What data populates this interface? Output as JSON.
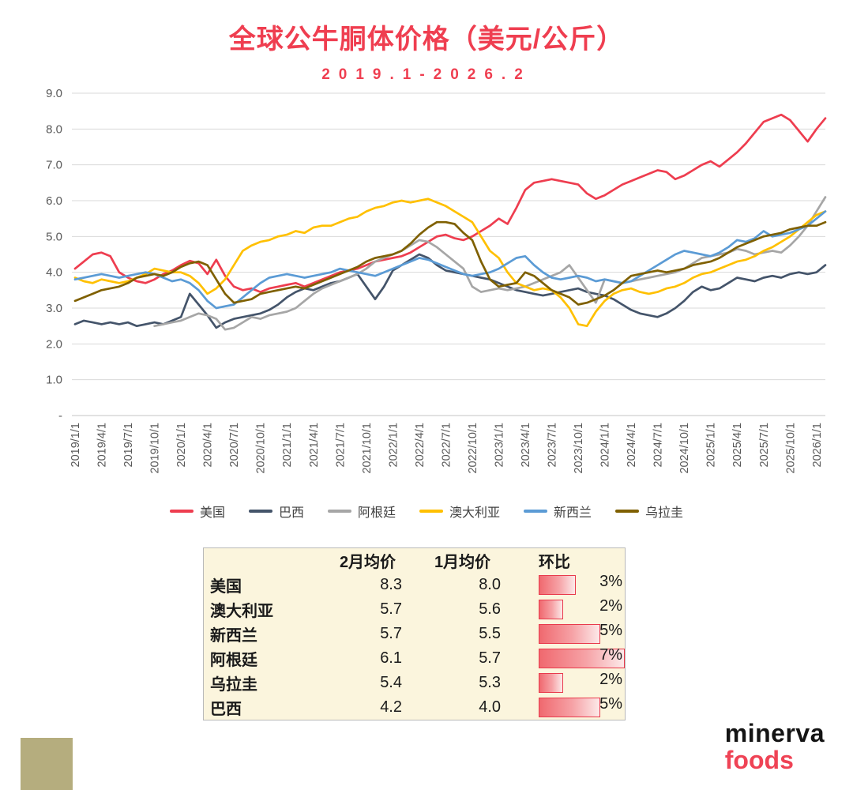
{
  "chart_data": {
    "type": "line",
    "title": "全球公牛胴体价格（美元/公斤）",
    "subtitle": "2019.1-2026.2",
    "ylim": [
      0,
      9
    ],
    "grid": "horizontal",
    "legend_position": "bottom",
    "y_ticks": [
      "9.0",
      "8.0",
      "7.0",
      "6.0",
      "5.0",
      "4.0",
      "3.0",
      "2.0",
      "1.0",
      "-"
    ],
    "x_tick_labels": [
      "2019/1/1",
      "2019/4/1",
      "2019/7/1",
      "2019/10/1",
      "2020/1/1",
      "2020/4/1",
      "2020/7/1",
      "2020/10/1",
      "2021/1/1",
      "2021/4/1",
      "2021/7/1",
      "2021/10/1",
      "2022/1/1",
      "2022/4/1",
      "2022/7/1",
      "2022/10/1",
      "2023/1/1",
      "2023/4/1",
      "2023/7/1",
      "2023/10/1",
      "2024/1/1",
      "2024/4/1",
      "2024/7/1",
      "2024/10/1",
      "2025/1/1",
      "2025/4/1",
      "2025/7/1",
      "2025/10/1",
      "2026/1/1"
    ],
    "x_frequency": "monthly",
    "series": [
      {
        "name": "美国",
        "color": "#ee3d4f",
        "values": [
          4.1,
          4.3,
          4.5,
          4.55,
          4.45,
          4.0,
          3.85,
          3.75,
          3.7,
          3.8,
          3.95,
          4.05,
          4.2,
          4.32,
          4.25,
          3.95,
          4.35,
          3.9,
          3.6,
          3.5,
          3.55,
          3.45,
          3.55,
          3.6,
          3.65,
          3.7,
          3.6,
          3.7,
          3.8,
          3.9,
          4.0,
          4.05,
          4.1,
          4.2,
          4.3,
          4.35,
          4.4,
          4.45,
          4.55,
          4.7,
          4.85,
          5.0,
          5.05,
          4.95,
          4.9,
          5.0,
          5.15,
          5.3,
          5.5,
          5.35,
          5.8,
          6.3,
          6.5,
          6.55,
          6.6,
          6.55,
          6.5,
          6.45,
          6.2,
          6.05,
          6.15,
          6.3,
          6.45,
          6.55,
          6.65,
          6.75,
          6.85,
          6.8,
          6.6,
          6.7,
          6.85,
          7.0,
          7.1,
          6.95,
          7.15,
          7.35,
          7.6,
          7.9,
          8.2,
          8.3,
          8.4,
          8.25,
          7.95,
          7.65,
          8.0,
          8.3
        ]
      },
      {
        "name": "巴西",
        "color": "#44546a",
        "values": [
          2.55,
          2.65,
          2.6,
          2.55,
          2.6,
          2.55,
          2.6,
          2.5,
          2.55,
          2.6,
          2.55,
          2.65,
          2.75,
          3.4,
          3.1,
          2.8,
          2.45,
          2.6,
          2.7,
          2.75,
          2.8,
          2.85,
          2.95,
          3.1,
          3.3,
          3.45,
          3.55,
          3.5,
          3.6,
          3.7,
          3.75,
          3.85,
          3.95,
          3.6,
          3.25,
          3.6,
          4.05,
          4.2,
          4.35,
          4.5,
          4.4,
          4.2,
          4.05,
          4.0,
          3.95,
          3.9,
          3.85,
          3.8,
          3.7,
          3.6,
          3.5,
          3.45,
          3.4,
          3.35,
          3.4,
          3.45,
          3.5,
          3.55,
          3.45,
          3.4,
          3.35,
          3.25,
          3.1,
          2.95,
          2.85,
          2.8,
          2.75,
          2.85,
          3.0,
          3.2,
          3.45,
          3.6,
          3.5,
          3.55,
          3.7,
          3.85,
          3.8,
          3.75,
          3.85,
          3.9,
          3.85,
          3.95,
          4.0,
          3.95,
          4.0,
          4.2
        ]
      },
      {
        "name": "阿根廷",
        "color": "#a6a6a6",
        "values": [
          null,
          null,
          null,
          null,
          null,
          null,
          null,
          null,
          null,
          2.5,
          2.55,
          2.6,
          2.65,
          2.75,
          2.85,
          2.8,
          2.7,
          2.4,
          2.45,
          2.6,
          2.75,
          2.7,
          2.8,
          2.85,
          2.9,
          3.0,
          3.2,
          3.4,
          3.55,
          3.65,
          3.75,
          3.85,
          3.95,
          4.1,
          4.3,
          4.4,
          4.5,
          4.6,
          4.75,
          4.9,
          4.85,
          4.7,
          4.5,
          4.3,
          4.1,
          3.6,
          3.45,
          3.5,
          3.55,
          3.5,
          3.55,
          3.6,
          3.7,
          3.8,
          3.9,
          4.0,
          4.2,
          3.85,
          3.5,
          3.15,
          3.8,
          3.75,
          3.7,
          3.75,
          3.8,
          3.85,
          3.9,
          3.95,
          4.0,
          4.1,
          4.25,
          4.4,
          4.45,
          4.5,
          4.55,
          4.65,
          4.6,
          4.5,
          4.55,
          4.6,
          4.55,
          4.75,
          5.0,
          5.3,
          5.7,
          6.1
        ]
      },
      {
        "name": "澳大利亚",
        "color": "#ffc000",
        "values": [
          3.85,
          3.75,
          3.7,
          3.8,
          3.75,
          3.7,
          3.75,
          3.85,
          3.95,
          4.1,
          4.05,
          4.0,
          4.0,
          3.9,
          3.7,
          3.4,
          3.55,
          3.8,
          4.2,
          4.6,
          4.75,
          4.85,
          4.9,
          5.0,
          5.05,
          5.15,
          5.1,
          5.25,
          5.3,
          5.3,
          5.4,
          5.5,
          5.55,
          5.7,
          5.8,
          5.85,
          5.95,
          6.0,
          5.95,
          6.0,
          6.05,
          5.95,
          5.85,
          5.7,
          5.55,
          5.4,
          5.0,
          4.6,
          4.4,
          4.0,
          3.7,
          3.6,
          3.5,
          3.55,
          3.5,
          3.3,
          3.0,
          2.55,
          2.5,
          2.9,
          3.2,
          3.4,
          3.5,
          3.55,
          3.45,
          3.4,
          3.45,
          3.55,
          3.6,
          3.7,
          3.85,
          3.95,
          4.0,
          4.1,
          4.2,
          4.3,
          4.35,
          4.45,
          4.6,
          4.7,
          4.85,
          5.0,
          5.2,
          5.4,
          5.6,
          5.7
        ]
      },
      {
        "name": "新西兰",
        "color": "#5b9bd5",
        "values": [
          3.8,
          3.85,
          3.9,
          3.95,
          3.9,
          3.85,
          3.9,
          3.95,
          4.0,
          3.95,
          3.85,
          3.75,
          3.8,
          3.7,
          3.5,
          3.2,
          3.0,
          3.05,
          3.1,
          3.3,
          3.5,
          3.7,
          3.85,
          3.9,
          3.95,
          3.9,
          3.85,
          3.9,
          3.95,
          4.0,
          4.1,
          4.05,
          4.0,
          3.95,
          3.9,
          4.0,
          4.1,
          4.2,
          4.3,
          4.4,
          4.35,
          4.25,
          4.15,
          4.05,
          3.95,
          3.9,
          3.95,
          4.0,
          4.1,
          4.25,
          4.4,
          4.45,
          4.2,
          4.0,
          3.85,
          3.8,
          3.85,
          3.9,
          3.85,
          3.75,
          3.8,
          3.75,
          3.7,
          3.75,
          3.9,
          4.05,
          4.2,
          4.35,
          4.5,
          4.6,
          4.55,
          4.5,
          4.45,
          4.55,
          4.7,
          4.9,
          4.85,
          4.95,
          5.15,
          5.0,
          5.05,
          5.1,
          5.2,
          5.3,
          5.5,
          5.7
        ]
      },
      {
        "name": "乌拉圭",
        "color": "#7f6000",
        "values": [
          3.2,
          3.3,
          3.4,
          3.5,
          3.55,
          3.6,
          3.7,
          3.85,
          3.9,
          3.95,
          3.9,
          4.0,
          4.15,
          4.25,
          4.3,
          4.2,
          3.8,
          3.4,
          3.15,
          3.2,
          3.25,
          3.4,
          3.45,
          3.5,
          3.55,
          3.6,
          3.55,
          3.65,
          3.75,
          3.85,
          3.95,
          4.05,
          4.15,
          4.3,
          4.4,
          4.45,
          4.5,
          4.6,
          4.8,
          5.05,
          5.25,
          5.4,
          5.4,
          5.35,
          5.1,
          4.9,
          4.3,
          3.8,
          3.6,
          3.65,
          3.7,
          4.0,
          3.9,
          3.7,
          3.5,
          3.4,
          3.3,
          3.1,
          3.15,
          3.25,
          3.35,
          3.5,
          3.7,
          3.9,
          3.95,
          4.0,
          4.05,
          4.0,
          4.05,
          4.1,
          4.2,
          4.25,
          4.3,
          4.4,
          4.55,
          4.7,
          4.8,
          4.9,
          5.0,
          5.05,
          5.1,
          5.2,
          5.25,
          5.3,
          5.3,
          5.4
        ]
      }
    ]
  },
  "table": {
    "headers": [
      "2月均价",
      "1月均价",
      "环比"
    ],
    "bar_max_value": 7,
    "rows": [
      {
        "label": "美国",
        "feb": "8.3",
        "jan": "8.0",
        "pct": "3%",
        "pct_value": 3
      },
      {
        "label": "澳大利亚",
        "feb": "5.7",
        "jan": "5.6",
        "pct": "2%",
        "pct_value": 2
      },
      {
        "label": "新西兰",
        "feb": "5.7",
        "jan": "5.5",
        "pct": "5%",
        "pct_value": 5
      },
      {
        "label": "阿根廷",
        "feb": "6.1",
        "jan": "5.7",
        "pct": "7%",
        "pct_value": 7
      },
      {
        "label": "乌拉圭",
        "feb": "5.4",
        "jan": "5.3",
        "pct": "2%",
        "pct_value": 2
      },
      {
        "label": "巴西",
        "feb": "4.2",
        "jan": "4.0",
        "pct": "5%",
        "pct_value": 5
      }
    ]
  },
  "logo": {
    "line1": "minerva",
    "line2": "foods"
  },
  "colors": {
    "accent_red": "#ef3e50",
    "table_background": "#fbf5dd",
    "bar_border": "#e83a4c",
    "corner_square": "#b5ad7e",
    "axis_text": "#595959",
    "gridline": "#d9d9d9"
  }
}
